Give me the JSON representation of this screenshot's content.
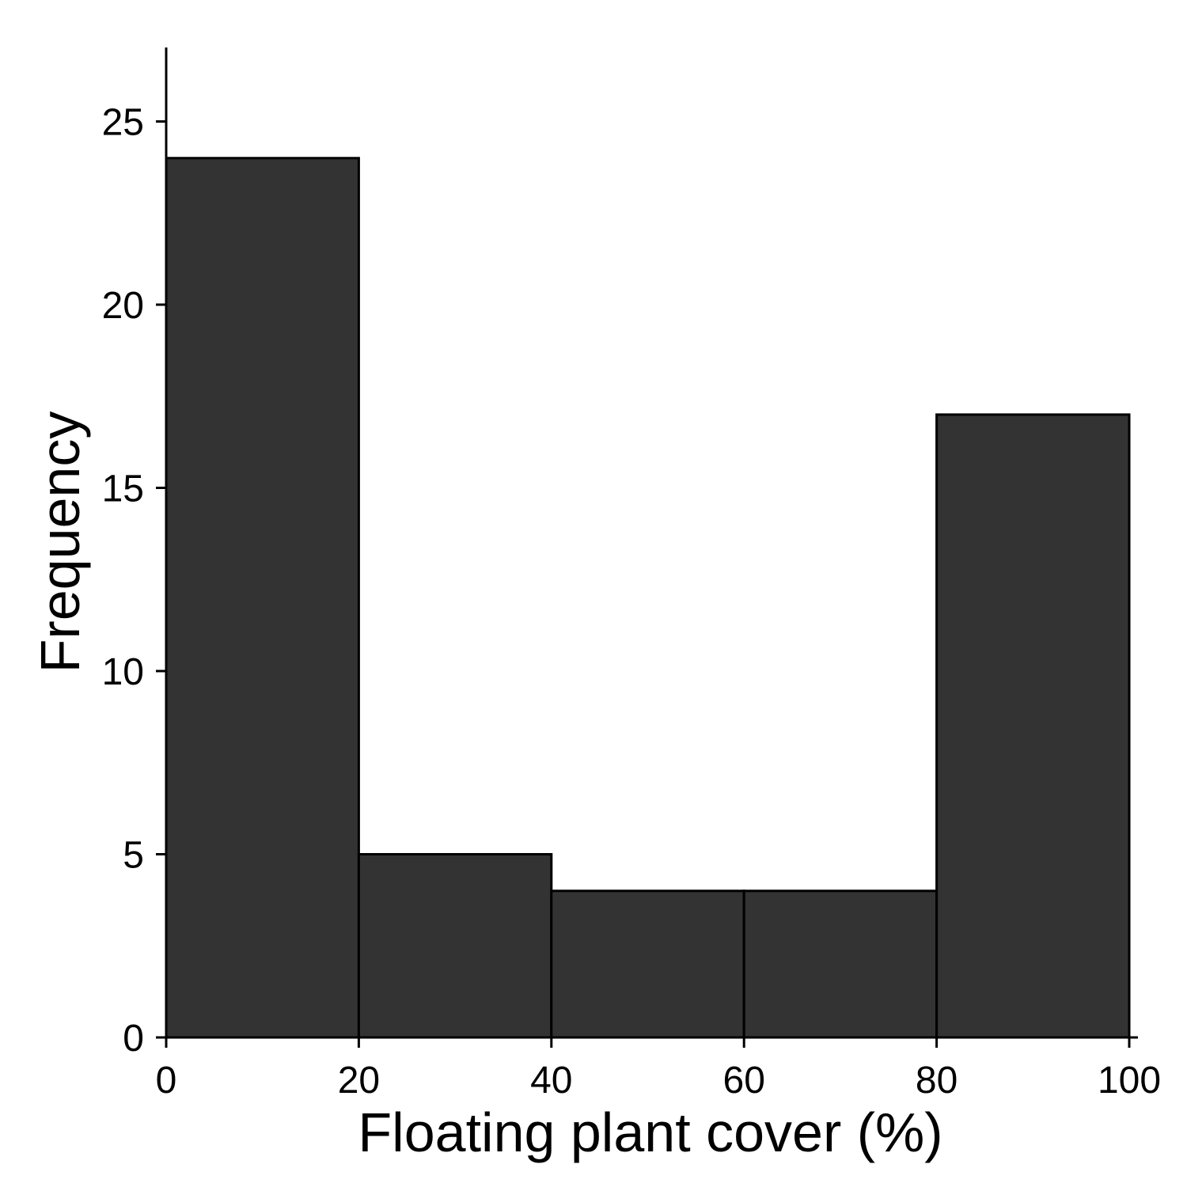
{
  "chart_data": {
    "type": "bar",
    "subtype": "histogram",
    "xlabel": "Floating plant cover (%)",
    "ylabel": "Frequency",
    "bins": [
      {
        "start": 0,
        "end": 20,
        "count": 24
      },
      {
        "start": 20,
        "end": 40,
        "count": 5
      },
      {
        "start": 40,
        "end": 60,
        "count": 4
      },
      {
        "start": 60,
        "end": 80,
        "count": 4
      },
      {
        "start": 80,
        "end": 100,
        "count": 17
      }
    ],
    "xlim": [
      0,
      100
    ],
    "ylim": [
      0,
      27
    ],
    "xticks": [
      0,
      20,
      40,
      60,
      80,
      100
    ],
    "yticks": [
      0,
      5,
      10,
      15,
      20,
      25
    ],
    "grid": false,
    "bar_color": "#333333",
    "edge_color": "#000000"
  }
}
